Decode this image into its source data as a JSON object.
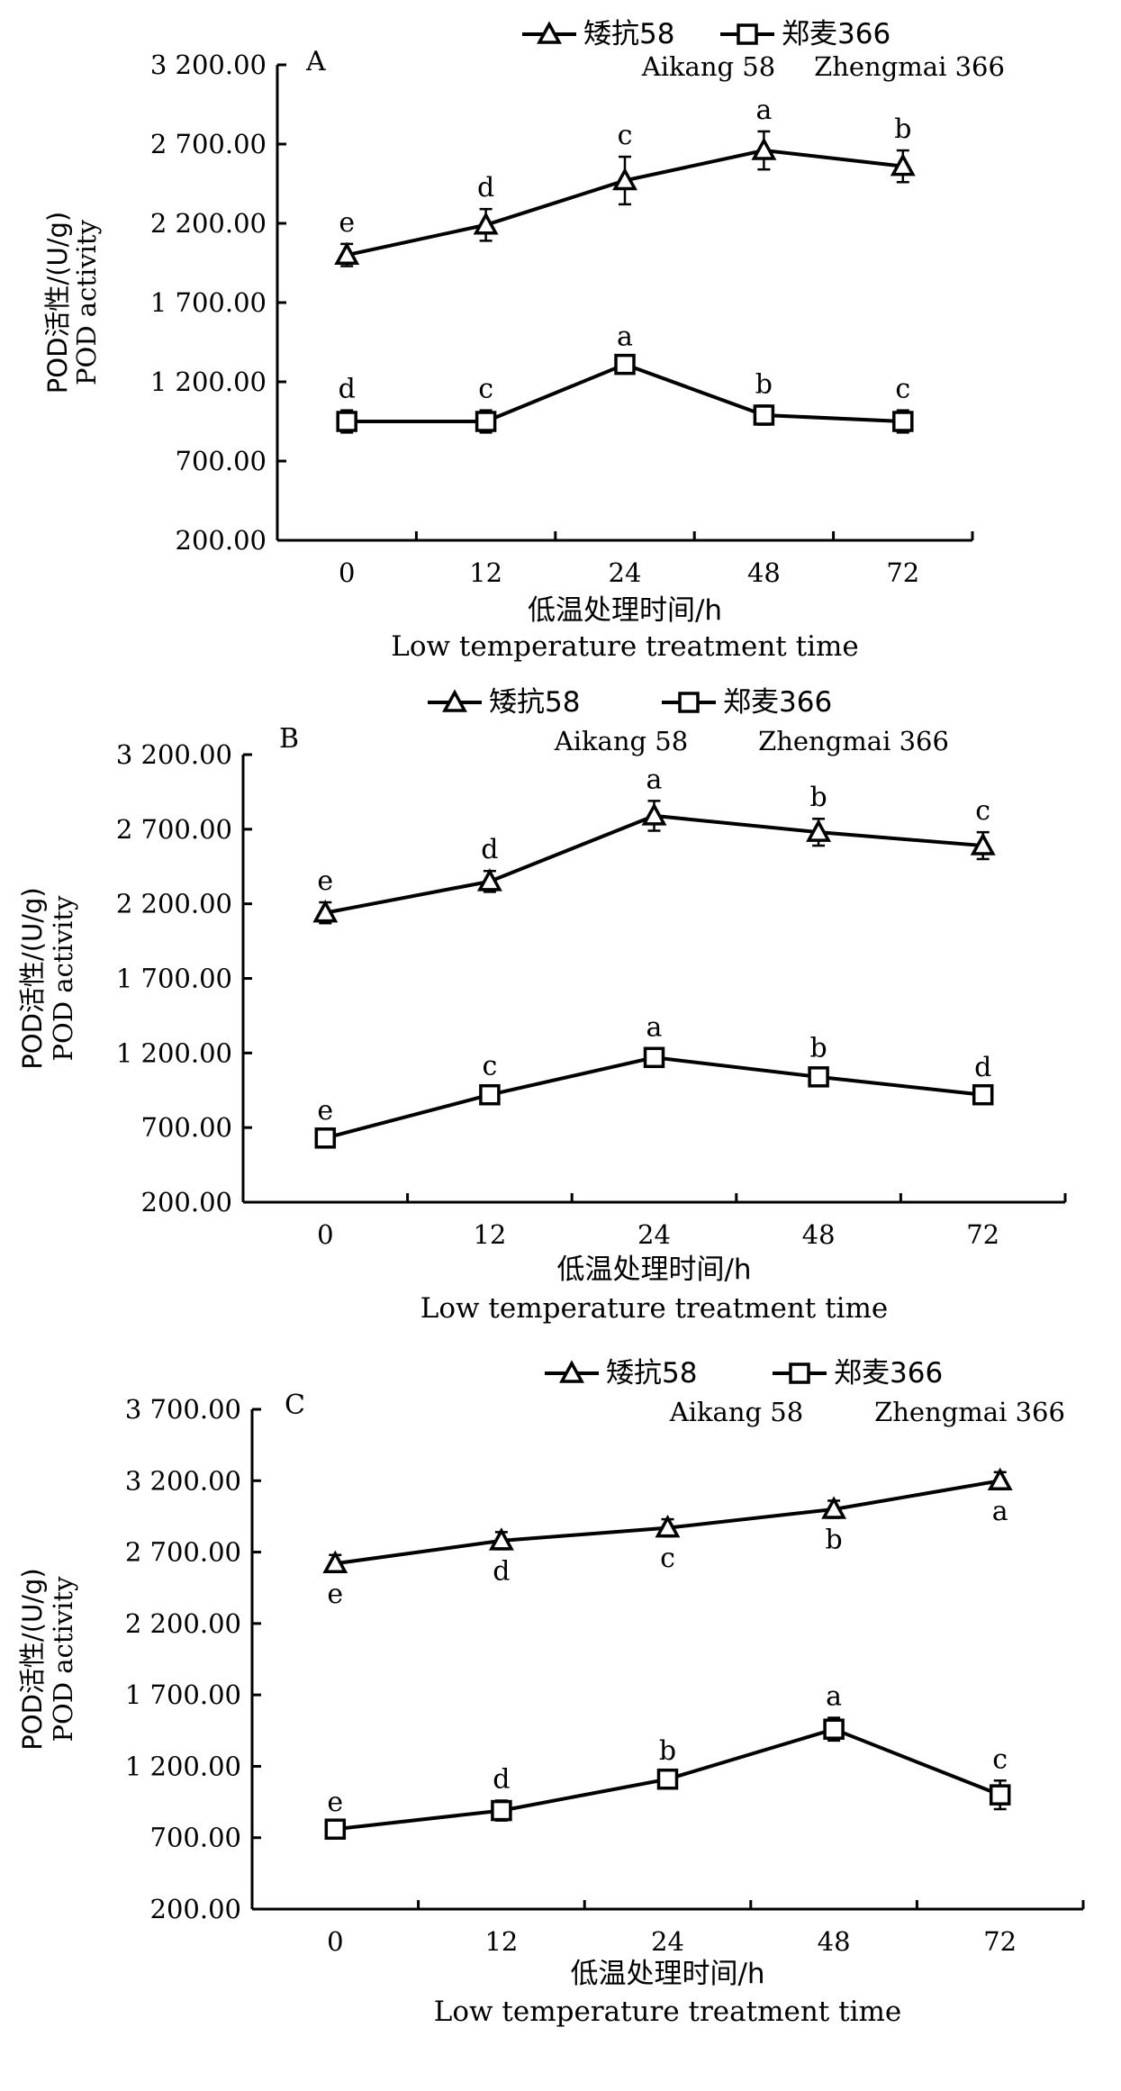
{
  "chart_data": [
    {
      "type": "line",
      "panel_label": "A",
      "categories": [
        "0",
        "12",
        "24",
        "48",
        "72"
      ],
      "ylim": [
        200,
        3200
      ],
      "yticks": [
        "200.00",
        "700.00",
        "1 200.00",
        "1 700.00",
        "2 200.00",
        "2 700.00",
        "3 200.00"
      ],
      "ytick_values": [
        200,
        700,
        1200,
        1700,
        2200,
        2700,
        3200
      ],
      "ylabel_cn": "POD活性/(U/g)",
      "ylabel_en": "POD activity",
      "xlabel_cn": "低温处理时间/h",
      "xlabel_en": "Low temperature treatment time",
      "series": [
        {
          "name": "矮抗58",
          "name_en": "Aikang 58",
          "marker": "triangle",
          "values": [
            2000,
            2190,
            2470,
            2660,
            2560
          ],
          "errors": [
            70,
            100,
            150,
            120,
            100
          ],
          "letters": [
            "e",
            "d",
            "c",
            "a",
            "b"
          ],
          "letter_pos": "above"
        },
        {
          "name": "郑麦366",
          "name_en": "Zhengmai 366",
          "marker": "square",
          "values": [
            950,
            950,
            1310,
            990,
            950
          ],
          "errors": [
            70,
            70,
            40,
            60,
            70
          ],
          "letters": [
            "d",
            "c",
            "a",
            "b",
            "c"
          ],
          "letter_pos": "above"
        }
      ]
    },
    {
      "type": "line",
      "panel_label": "B",
      "categories": [
        "0",
        "12",
        "24",
        "48",
        "72"
      ],
      "ylim": [
        200,
        3200
      ],
      "yticks": [
        "200.00",
        "700.00",
        "1 200.00",
        "1 700.00",
        "2 200.00",
        "2 700.00",
        "3 200.00"
      ],
      "ytick_values": [
        200,
        700,
        1200,
        1700,
        2200,
        2700,
        3200
      ],
      "ylabel_cn": "POD活性/(U/g)",
      "ylabel_en": "POD activity",
      "xlabel_cn": "低温处理时间/h",
      "xlabel_en": "Low temperature treatment time",
      "series": [
        {
          "name": "矮抗58",
          "name_en": "Aikang 58",
          "marker": "triangle",
          "values": [
            2140,
            2350,
            2790,
            2680,
            2590
          ],
          "errors": [
            70,
            70,
            100,
            90,
            90
          ],
          "letters": [
            "e",
            "d",
            "a",
            "b",
            "c"
          ],
          "letter_pos": "above"
        },
        {
          "name": "郑麦366",
          "name_en": "Zhengmai 366",
          "marker": "square",
          "values": [
            630,
            920,
            1170,
            1040,
            920
          ],
          "errors": [
            40,
            50,
            60,
            50,
            40
          ],
          "letters": [
            "e",
            "c",
            "a",
            "b",
            "d"
          ],
          "letter_pos": "above"
        }
      ]
    },
    {
      "type": "line",
      "panel_label": "C",
      "categories": [
        "0",
        "12",
        "24",
        "48",
        "72"
      ],
      "ylim": [
        200,
        3700
      ],
      "yticks": [
        "200.00",
        "700.00",
        "1 200.00",
        "1 700.00",
        "2 200.00",
        "2 700.00",
        "3 200.00",
        "3 700.00"
      ],
      "ytick_values": [
        200,
        700,
        1200,
        1700,
        2200,
        2700,
        3200,
        3700
      ],
      "ylabel_cn": "POD活性/(U/g)",
      "ylabel_en": "POD activity",
      "xlabel_cn": "低温处理时间/h",
      "xlabel_en": "Low temperature treatment time",
      "series": [
        {
          "name": "矮抗58",
          "name_en": "Aikang 58",
          "marker": "triangle",
          "values": [
            2620,
            2780,
            2870,
            3000,
            3200
          ],
          "errors": [
            60,
            60,
            60,
            60,
            60
          ],
          "letters": [
            "e",
            "d",
            "c",
            "b",
            "a"
          ],
          "letter_pos": "below"
        },
        {
          "name": "郑麦366",
          "name_en": "Zhengmai 366",
          "marker": "square",
          "values": [
            760,
            890,
            1110,
            1460,
            1000
          ],
          "errors": [
            40,
            70,
            50,
            80,
            100
          ],
          "letters": [
            "e",
            "d",
            "b",
            "a",
            "c"
          ],
          "letter_pos": "above"
        }
      ]
    }
  ]
}
